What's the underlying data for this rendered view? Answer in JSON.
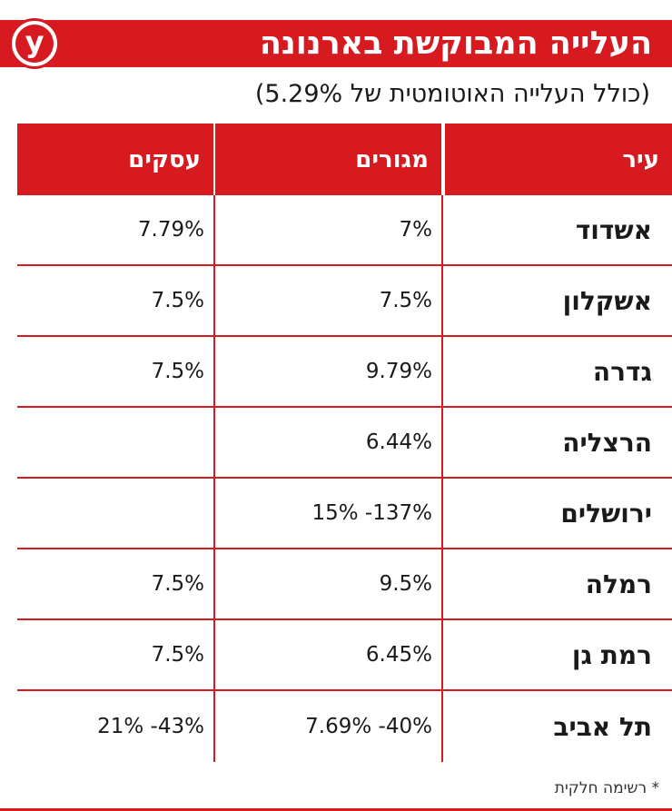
{
  "logo": {
    "letter": "y"
  },
  "title": "העלייה המבוקשת בארנונה",
  "subtitle": "(כולל העלייה האוטומטית של 5.29%)",
  "table": {
    "headers": [
      "עיר",
      "מגורים",
      "עסקים"
    ],
    "rows": [
      {
        "city": "אשדוד",
        "residential": "7%",
        "business": "7.79%"
      },
      {
        "city": "אשקלון",
        "residential": "7.5%",
        "business": "7.5%"
      },
      {
        "city": "גדרה",
        "residential": "9.79%",
        "business": "7.5%"
      },
      {
        "city": "הרצליה",
        "residential": "6.44%",
        "business": ""
      },
      {
        "city": "ירושלים",
        "residential": "137%- 15%",
        "business": ""
      },
      {
        "city": "רמלה",
        "residential": "9.5%",
        "business": "7.5%"
      },
      {
        "city": "רמת גן",
        "residential": "6.45%",
        "business": "7.5%"
      },
      {
        "city": "תל אביב",
        "residential": "40%- 7.69%",
        "business": "43%- 21%"
      }
    ]
  },
  "footnote": "* רשימה חלקית",
  "colors": {
    "accent": "#d71920",
    "text": "#1a1a1a"
  }
}
